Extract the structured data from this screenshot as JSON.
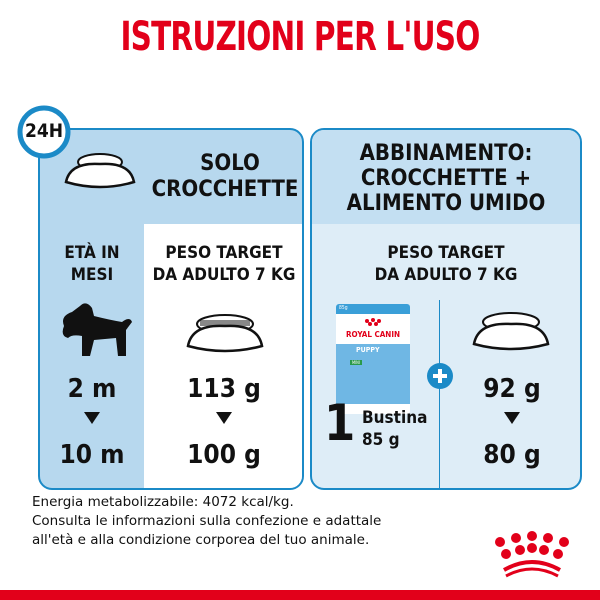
{
  "title": "ISTRUZIONI PER L'USO",
  "clock_label": "24H",
  "left": {
    "heading_line1": "SOLO",
    "heading_line2": "CROCCHETTE",
    "age_label_line1": "ETÀ IN",
    "age_label_line2": "MESI",
    "weight_label_line1": "PESO TARGET",
    "weight_label_line2": "DA ADULTO 7 KG",
    "age_start": "2 m",
    "age_end": "10 m",
    "dry_start": "113 g",
    "dry_end": "100 g"
  },
  "right": {
    "heading_line1": "ABBINAMENTO:",
    "heading_line2": "CROCCHETTE +",
    "heading_line3": "ALIMENTO UMIDO",
    "weight_label_line1": "PESO TARGET",
    "weight_label_line2": "DA ADULTO 7 KG",
    "pouch_count": "1",
    "pouch_unit": "Bustina",
    "pouch_weight": "85 g",
    "dry_start": "92 g",
    "dry_end": "80 g",
    "pouch_brand": "ROYAL CANIN",
    "pouch_product": "PUPPY",
    "pouch_size": "85g",
    "pouch_variant": "MINI"
  },
  "footer": {
    "line1": "Energia metabolizzabile: 4072 kcal/kg.",
    "line2": "Consulta le informazioni sulla confezione e adattale",
    "line3": "all'età e alla condizione corporea del tuo animale."
  },
  "colors": {
    "brand_red": "#e2001a",
    "accent_blue": "#1b8ac7"
  }
}
